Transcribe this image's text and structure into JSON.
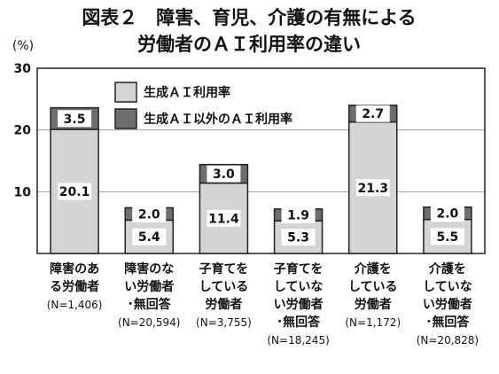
{
  "chart_data": {
    "type": "bar",
    "stacked": true,
    "title_lines": [
      "図表２　障害、育児、介護の有無による",
      "労働者のＡＩ利用率の違い"
    ],
    "y_unit": "(%)",
    "ylim": [
      0,
      30
    ],
    "y_ticks": [
      "30",
      "20",
      "10"
    ],
    "y_tick_values": [
      30,
      20,
      10
    ],
    "grid": true,
    "legend_position": "top-center",
    "categories": [
      {
        "lines": [
          "障害のあ",
          "る労働者"
        ],
        "n": "(N=1,406)"
      },
      {
        "lines": [
          "障害のな",
          "い労働者",
          "･無回答"
        ],
        "n": "(N=20,594)"
      },
      {
        "lines": [
          "子育てを",
          "している",
          "労働者"
        ],
        "n": "(N=3,755)"
      },
      {
        "lines": [
          "子育てを",
          "していな",
          "い労働者",
          "･無回答"
        ],
        "n": "(N=18,245)"
      },
      {
        "lines": [
          "介護を",
          "している",
          "労働者"
        ],
        "n": "(N=1,172)"
      },
      {
        "lines": [
          "介護を",
          "していな",
          "い労働者",
          "･無回答"
        ],
        "n": "(N=20,828)"
      }
    ],
    "series": [
      {
        "name": "生成ＡＩ利用率",
        "color": "#d4d4d4",
        "values": [
          20.1,
          5.4,
          11.4,
          5.3,
          21.3,
          5.5
        ],
        "labels": [
          "20.1",
          "5.4",
          "11.4",
          "5.3",
          "21.3",
          "5.5"
        ]
      },
      {
        "name": "生成ＡＩ以外のＡＩ利用率",
        "color": "#6e6e6e",
        "values": [
          3.5,
          2.0,
          3.0,
          1.9,
          2.7,
          2.0
        ],
        "labels": [
          "3.5",
          "2.0",
          "3.0",
          "1.9",
          "2.7",
          "2.0"
        ]
      }
    ]
  }
}
